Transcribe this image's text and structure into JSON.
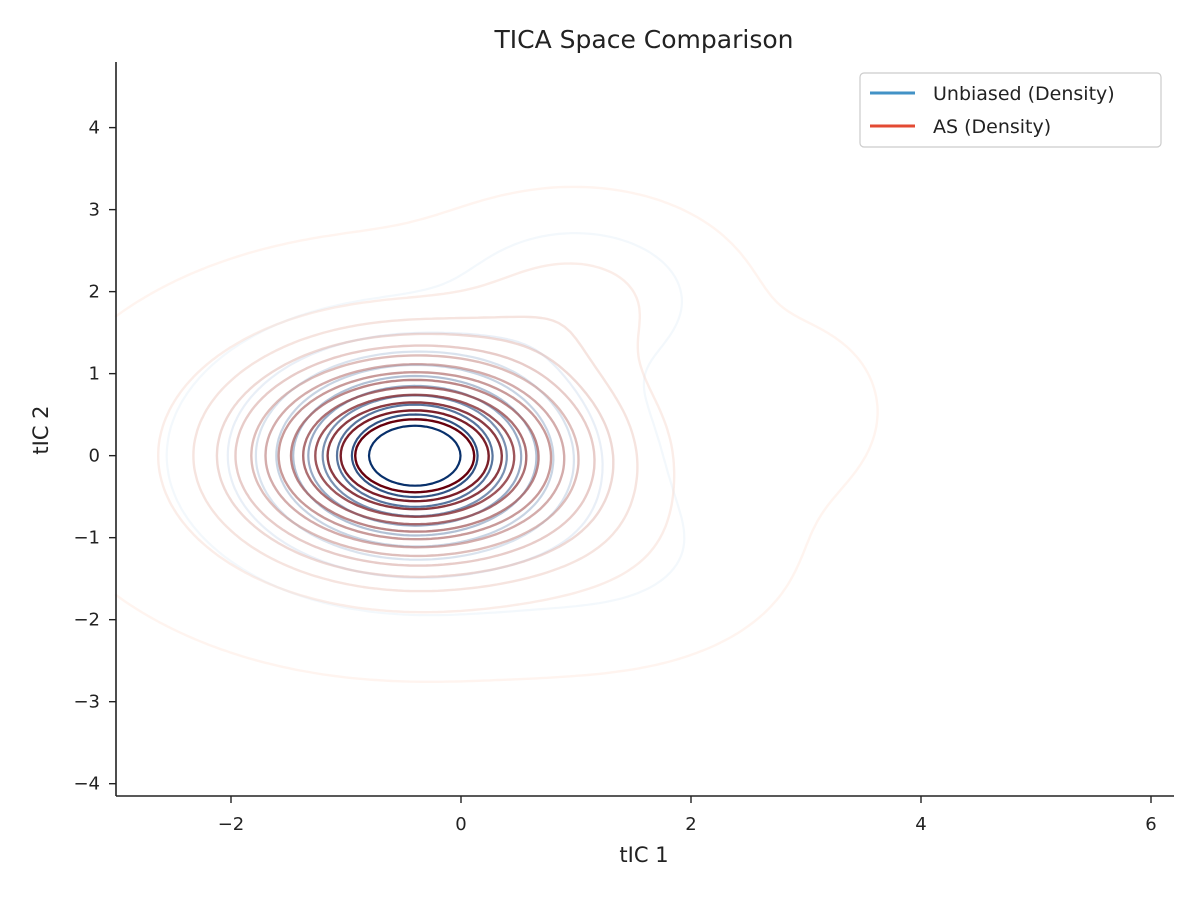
{
  "chart_data": {
    "type": "contour",
    "title": "TICA Space Comparison",
    "xlabel": "tIC 1",
    "ylabel": "tIC 2",
    "xlim": [
      -3.0,
      6.2
    ],
    "ylim": [
      -4.15,
      4.8
    ],
    "x_ticks": [
      -2,
      0,
      2,
      4,
      6
    ],
    "x_tick_labels": [
      "−2",
      "0",
      "2",
      "4",
      "6"
    ],
    "y_ticks": [
      -4,
      -3,
      -2,
      -1,
      0,
      1,
      2,
      3,
      4
    ],
    "y_tick_labels": [
      "−4",
      "−3",
      "−2",
      "−1",
      "0",
      "1",
      "2",
      "3",
      "4"
    ],
    "grid": false,
    "legend_position": "top-right",
    "series": [
      {
        "name": "Unbiased (Density)",
        "legend_color": "#4292c6",
        "color_light": "#deebf7",
        "color_dark": "#08306b",
        "peak": [
          -0.4,
          0.0
        ],
        "secondary_peak": [
          1.0,
          1.9
        ],
        "contour_levels": 10
      },
      {
        "name": "AS (Density)",
        "legend_color": "#e34a33",
        "color_light": "#fee0d2",
        "color_dark": "#67000d",
        "peak": [
          -0.4,
          0.0
        ],
        "secondary_peak": [
          1.0,
          1.9
        ],
        "contour_levels": 14
      }
    ]
  }
}
